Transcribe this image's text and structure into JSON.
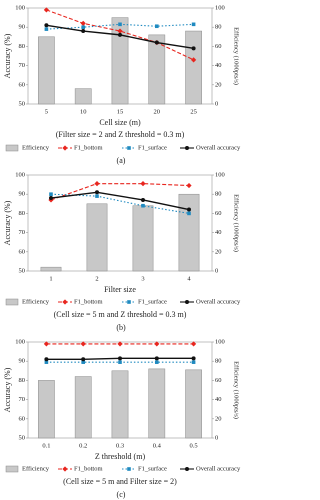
{
  "chart_data": [
    {
      "type": "combo",
      "x_label": "Cell size (m)",
      "caption": "(Filter size = 2 and Z threshold = 0.3 m)",
      "panel_label": "(a)",
      "y_label": "Accuracy (%)",
      "y2_label": "Efficiency (1000pts/s)",
      "categories": [
        "5",
        "10",
        "15",
        "20",
        "25"
      ],
      "ylim": [
        50,
        100
      ],
      "yticks": [
        50,
        60,
        70,
        80,
        90,
        100
      ],
      "y2lim": [
        0,
        100
      ],
      "y2ticks": [
        0,
        20,
        40,
        60,
        80,
        100
      ],
      "legend_order": "caption-first",
      "series": [
        {
          "name": "Efficiency",
          "color": "#c8c8c8",
          "kind": "bar",
          "axis": "y2",
          "values": [
            70,
            16,
            90,
            72,
            76
          ]
        },
        {
          "name": "F1_bottom",
          "color": "#e8261f",
          "kind": "line",
          "dash": "4,2",
          "marker": "diamond",
          "values": [
            99,
            92,
            88,
            82,
            73
          ]
        },
        {
          "name": "F1_surface",
          "color": "#1f8ac0",
          "kind": "line",
          "dash": "1.5,2",
          "marker": "square",
          "values": [
            89,
            90,
            91.5,
            90.5,
            91.5
          ]
        },
        {
          "name": "Overall accuracy",
          "color": "#111111",
          "kind": "line",
          "dash": "none",
          "marker": "circle",
          "values": [
            91,
            88,
            86,
            82,
            79
          ]
        }
      ]
    },
    {
      "type": "combo",
      "x_label": "Filter size",
      "caption": "(Cell size = 5 m and Z threshold = 0.3 m)",
      "panel_label": "(b)",
      "y_label": "Accuracy (%)",
      "y2_label": "Efficiency (1000pts/s)",
      "categories": [
        "1",
        "2",
        "3",
        "4"
      ],
      "ylim": [
        50,
        100
      ],
      "yticks": [
        50,
        60,
        70,
        80,
        90,
        100
      ],
      "y2lim": [
        0,
        100
      ],
      "y2ticks": [
        0,
        20,
        40,
        60,
        80,
        100
      ],
      "legend_order": "legend-first",
      "series": [
        {
          "name": "Efficiency",
          "color": "#c8c8c8",
          "kind": "bar",
          "axis": "y2",
          "values": [
            4,
            70,
            68,
            80
          ]
        },
        {
          "name": "F1_bottom",
          "color": "#e8261f",
          "kind": "line",
          "dash": "4,2",
          "marker": "diamond",
          "values": [
            87,
            95.5,
            95.5,
            94.5
          ]
        },
        {
          "name": "F1_surface",
          "color": "#1f8ac0",
          "kind": "line",
          "dash": "1.5,2",
          "marker": "square",
          "values": [
            90,
            89,
            84,
            80
          ]
        },
        {
          "name": "Overall accuracy",
          "color": "#111111",
          "kind": "line",
          "dash": "none",
          "marker": "circle",
          "values": [
            88,
            91,
            87,
            82
          ]
        }
      ]
    },
    {
      "type": "combo",
      "x_label": "Z threshold (m)",
      "caption": "(Cell size = 5 m and Filter size = 2)",
      "panel_label": "(c)",
      "y_label": "Accuracy (%)",
      "y2_label": "Efficiency (1000pts/s)",
      "categories": [
        "0.1",
        "0.2",
        "0.3",
        "0.4",
        "0.5"
      ],
      "ylim": [
        50,
        100
      ],
      "yticks": [
        50,
        60,
        70,
        80,
        90,
        100
      ],
      "y2lim": [
        0,
        100
      ],
      "y2ticks": [
        0,
        20,
        40,
        60,
        80,
        100
      ],
      "legend_order": "legend-first",
      "series": [
        {
          "name": "Efficiency",
          "color": "#c8c8c8",
          "kind": "bar",
          "axis": "y2",
          "values": [
            60,
            64,
            70,
            72,
            71
          ]
        },
        {
          "name": "F1_bottom",
          "color": "#e8261f",
          "kind": "line",
          "dash": "4,2",
          "marker": "diamond",
          "values": [
            99,
            99,
            99,
            99,
            99
          ]
        },
        {
          "name": "F1_surface",
          "color": "#1f8ac0",
          "kind": "line",
          "dash": "1.5,2",
          "marker": "square",
          "values": [
            89.5,
            89.5,
            89.5,
            89.5,
            89.5
          ]
        },
        {
          "name": "Overall accuracy",
          "color": "#111111",
          "kind": "line",
          "dash": "none",
          "marker": "circle",
          "values": [
            91,
            91,
            91.5,
            91.5,
            91.5
          ]
        }
      ]
    }
  ]
}
